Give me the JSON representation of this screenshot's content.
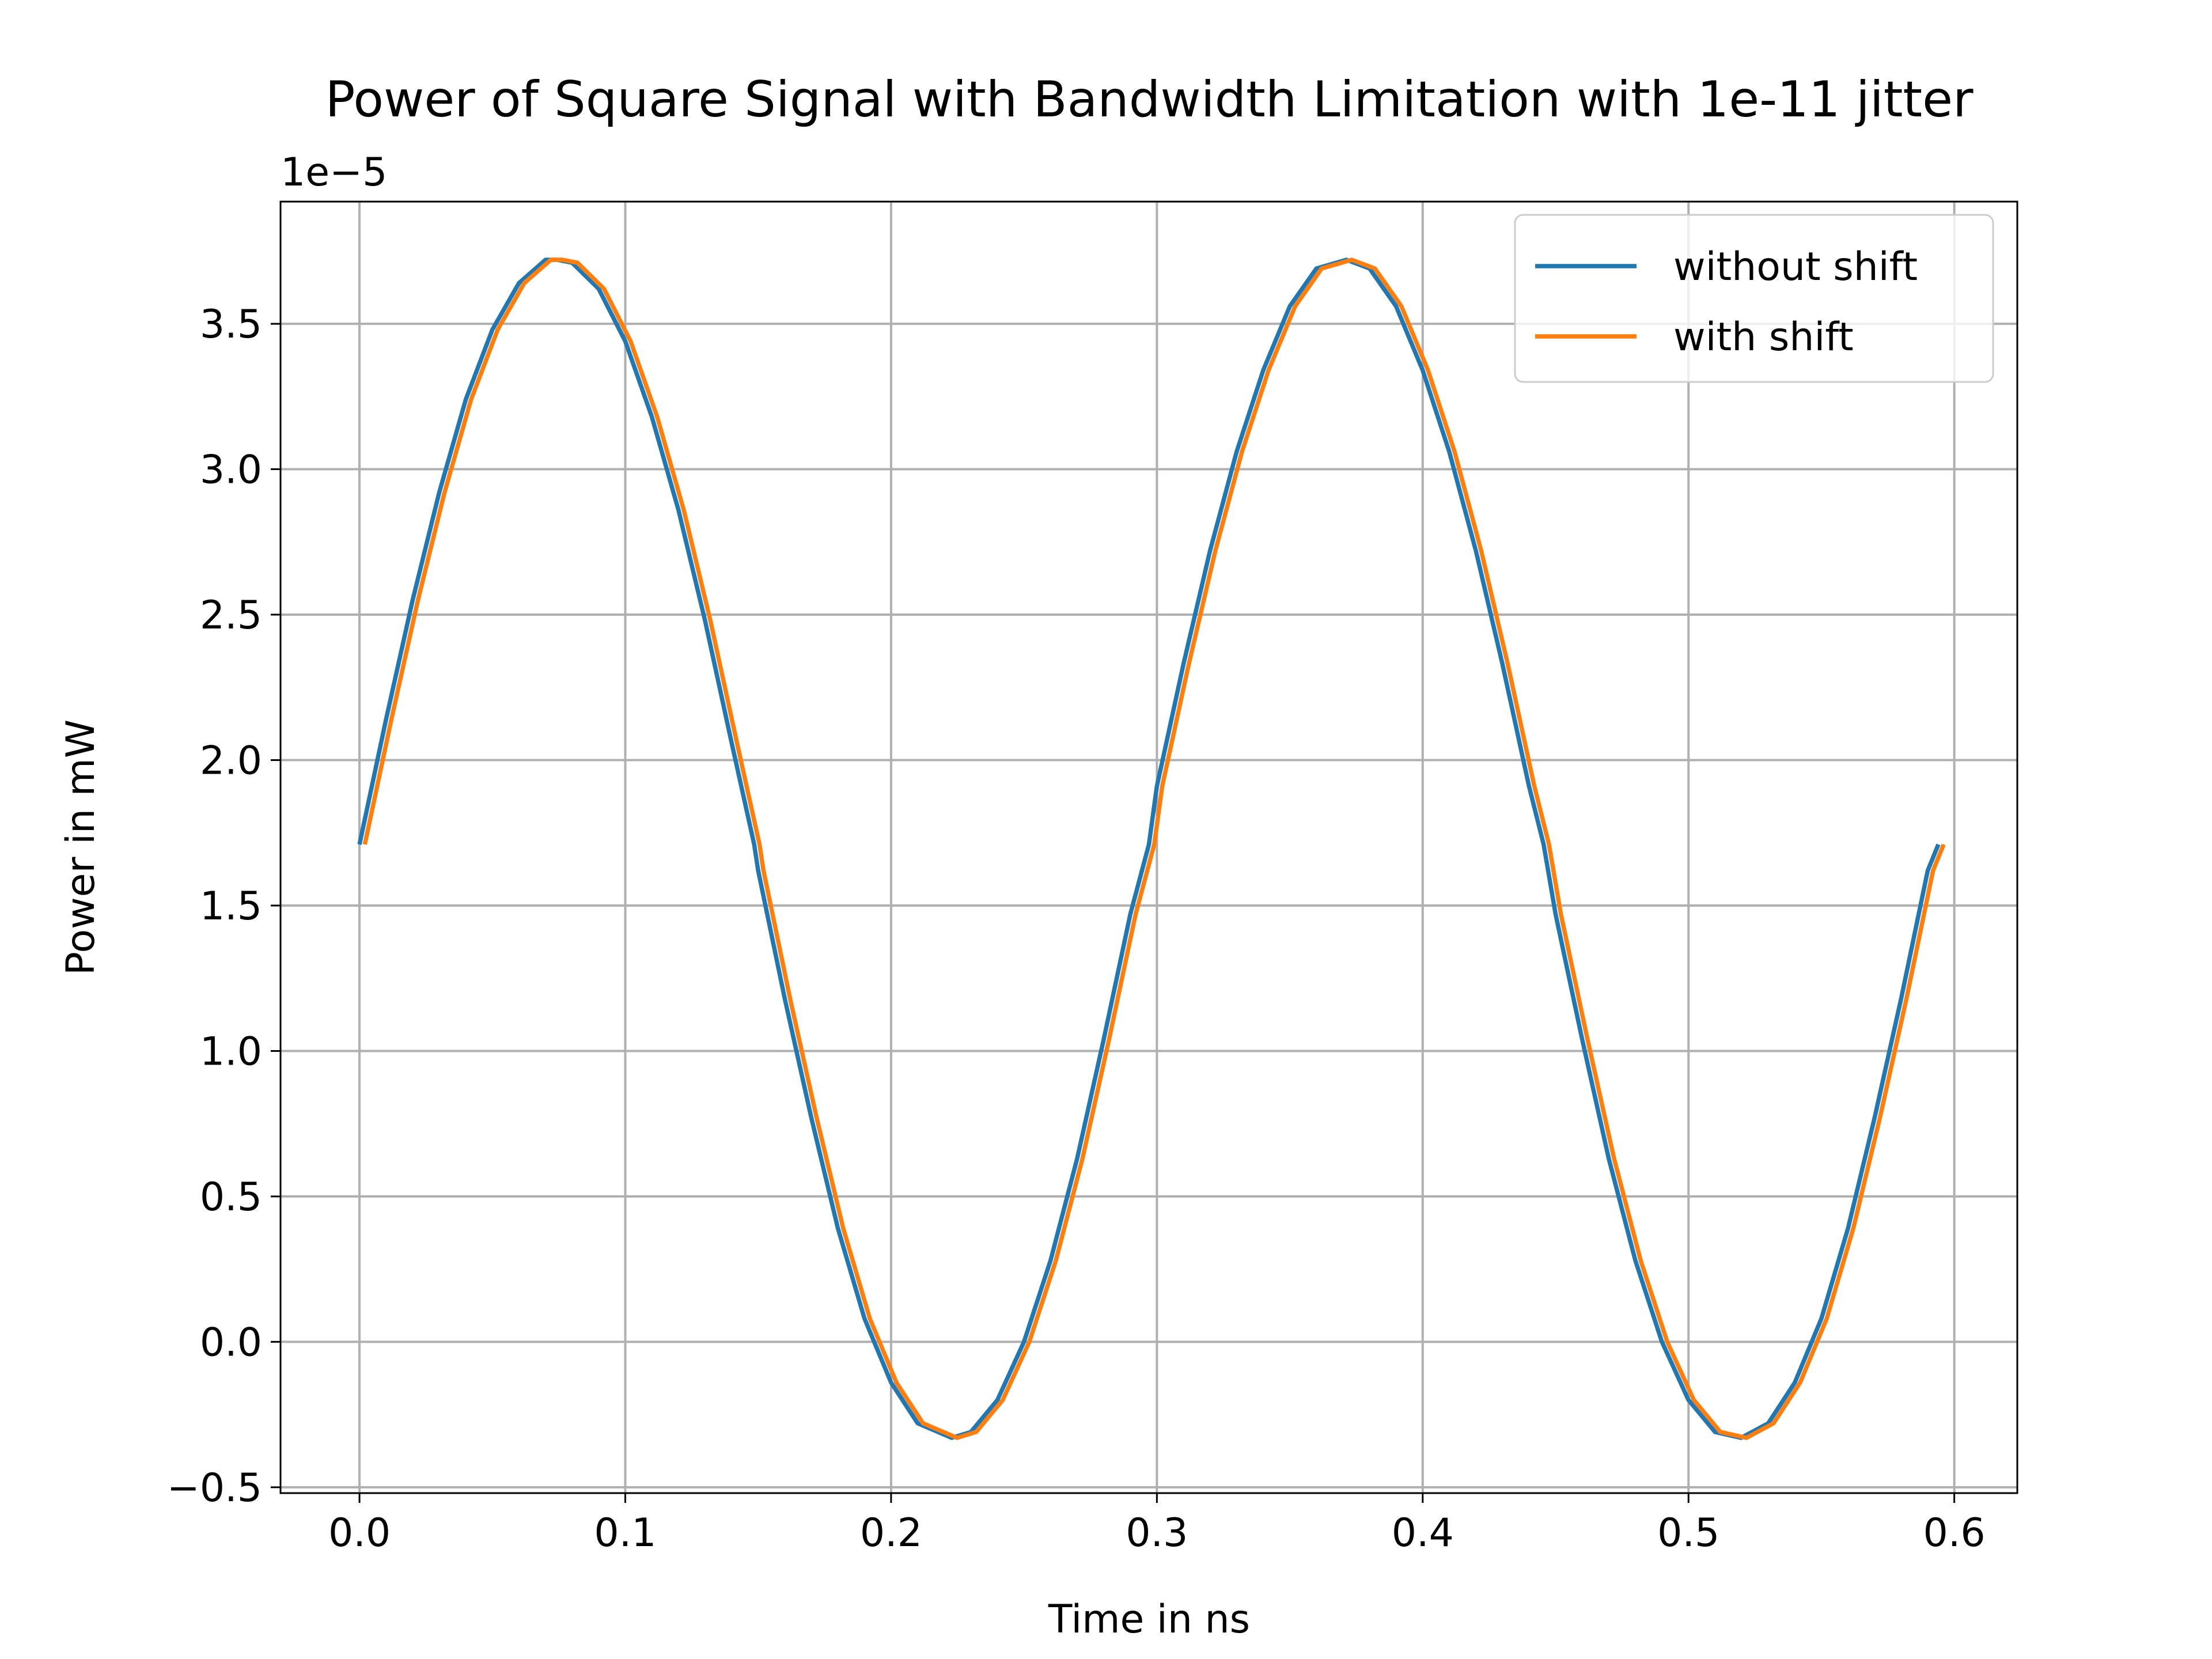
{
  "chart_data": {
    "type": "line",
    "title": "Power of Square Signal with Bandwidth Limitation with 1e-11 jitter",
    "xlabel": "Time in ns",
    "ylabel": "Power in mW",
    "y_offset_label": "1e−5",
    "y_scale_factor": 1e-05,
    "xlim": [
      -0.0297,
      0.6237
    ],
    "ylim": [
      -0.52,
      3.92
    ],
    "x_ticks": [
      0.0,
      0.1,
      0.2,
      0.3,
      0.4,
      0.5,
      0.6
    ],
    "x_tick_labels": [
      "0.0",
      "0.1",
      "0.2",
      "0.3",
      "0.4",
      "0.5",
      "0.6"
    ],
    "y_ticks": [
      -0.5,
      0.0,
      0.5,
      1.0,
      1.5,
      2.0,
      2.5,
      3.0,
      3.5
    ],
    "y_tick_labels": [
      "−0.5",
      "0.0",
      "0.5",
      "1.0",
      "1.5",
      "2.0",
      "2.5",
      "3.0",
      "3.5"
    ],
    "grid": true,
    "legend_placement": "upper right",
    "series": [
      {
        "name": "without shift",
        "color": "#1f77b4",
        "x": [
          0.0,
          0.01,
          0.02,
          0.03,
          0.04,
          0.05,
          0.06,
          0.07,
          0.0743,
          0.08,
          0.09,
          0.1,
          0.11,
          0.12,
          0.13,
          0.14,
          0.1485,
          0.15,
          0.16,
          0.17,
          0.18,
          0.19,
          0.2,
          0.21,
          0.2228,
          0.23,
          0.24,
          0.25,
          0.26,
          0.27,
          0.28,
          0.29,
          0.297,
          0.3,
          0.31,
          0.32,
          0.33,
          0.34,
          0.35,
          0.36,
          0.3713,
          0.38,
          0.39,
          0.4,
          0.41,
          0.42,
          0.43,
          0.44,
          0.4455,
          0.45,
          0.46,
          0.47,
          0.48,
          0.49,
          0.5,
          0.51,
          0.5198,
          0.53,
          0.54,
          0.55,
          0.56,
          0.57,
          0.58,
          0.59,
          0.594
        ],
        "y": [
          1.71,
          2.14,
          2.55,
          2.92,
          3.24,
          3.48,
          3.64,
          3.72,
          3.72,
          3.71,
          3.62,
          3.44,
          3.18,
          2.86,
          2.48,
          2.06,
          1.71,
          1.62,
          1.18,
          0.77,
          0.39,
          0.08,
          -0.14,
          -0.28,
          -0.33,
          -0.31,
          -0.2,
          0.0,
          0.28,
          0.63,
          1.04,
          1.47,
          1.71,
          1.91,
          2.33,
          2.72,
          3.06,
          3.34,
          3.56,
          3.69,
          3.72,
          3.69,
          3.56,
          3.34,
          3.06,
          2.72,
          2.33,
          1.91,
          1.71,
          1.47,
          1.04,
          0.63,
          0.28,
          0.0,
          -0.2,
          -0.31,
          -0.33,
          -0.28,
          -0.14,
          0.08,
          0.39,
          0.77,
          1.18,
          1.62,
          1.71
        ]
      },
      {
        "name": "with shift",
        "color": "#ff7f0e",
        "x": [
          0.002,
          0.012,
          0.022,
          0.032,
          0.042,
          0.052,
          0.062,
          0.072,
          0.0763,
          0.082,
          0.092,
          0.102,
          0.112,
          0.122,
          0.132,
          0.142,
          0.1505,
          0.152,
          0.162,
          0.172,
          0.182,
          0.192,
          0.202,
          0.212,
          0.2248,
          0.232,
          0.242,
          0.252,
          0.262,
          0.272,
          0.282,
          0.292,
          0.299,
          0.302,
          0.312,
          0.322,
          0.332,
          0.342,
          0.352,
          0.362,
          0.3733,
          0.382,
          0.392,
          0.402,
          0.412,
          0.422,
          0.432,
          0.442,
          0.4475,
          0.452,
          0.462,
          0.472,
          0.482,
          0.492,
          0.502,
          0.512,
          0.5218,
          0.532,
          0.542,
          0.552,
          0.562,
          0.572,
          0.582,
          0.592,
          0.596
        ],
        "y": [
          1.71,
          2.14,
          2.55,
          2.92,
          3.24,
          3.48,
          3.64,
          3.72,
          3.72,
          3.71,
          3.62,
          3.44,
          3.18,
          2.86,
          2.48,
          2.06,
          1.71,
          1.62,
          1.18,
          0.77,
          0.39,
          0.08,
          -0.14,
          -0.28,
          -0.33,
          -0.31,
          -0.2,
          0.0,
          0.28,
          0.63,
          1.04,
          1.47,
          1.71,
          1.91,
          2.33,
          2.72,
          3.06,
          3.34,
          3.56,
          3.69,
          3.72,
          3.69,
          3.56,
          3.34,
          3.06,
          2.72,
          2.33,
          1.91,
          1.71,
          1.47,
          1.04,
          0.63,
          0.28,
          0.0,
          -0.2,
          -0.31,
          -0.33,
          -0.28,
          -0.14,
          0.08,
          0.39,
          0.77,
          1.18,
          1.62,
          1.71
        ]
      }
    ]
  }
}
